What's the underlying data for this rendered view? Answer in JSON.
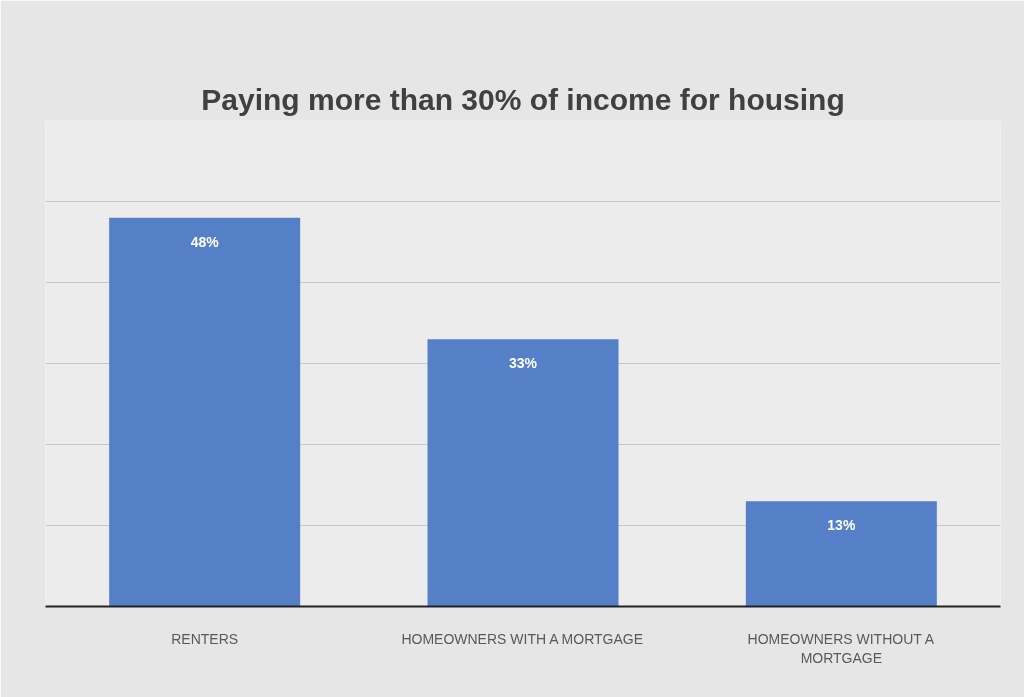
{
  "chart_data": {
    "type": "bar",
    "title": "Paying more than 30% of income for housing",
    "categories": [
      "RENTERS",
      "HOMEOWNERS WITH A MORTGAGE",
      "HOMEOWNERS WITHOUT A MORTGAGE"
    ],
    "values": [
      48,
      33,
      13
    ],
    "color": "#5580c8",
    "data_labels": true,
    "value_labels": [
      "48%",
      "33%",
      "13%"
    ],
    "ylim": [
      0,
      60
    ],
    "yticks": [
      {
        "value": 0,
        "label": null
      },
      {
        "value": 10,
        "label": null
      },
      {
        "value": 20,
        "label": null
      },
      {
        "value": 30,
        "label": null
      },
      {
        "value": 40,
        "label": null
      },
      {
        "value": 50,
        "label": null
      },
      {
        "value": 60,
        "label": null
      }
    ],
    "grid": "y",
    "tick_labels": "x"
  }
}
